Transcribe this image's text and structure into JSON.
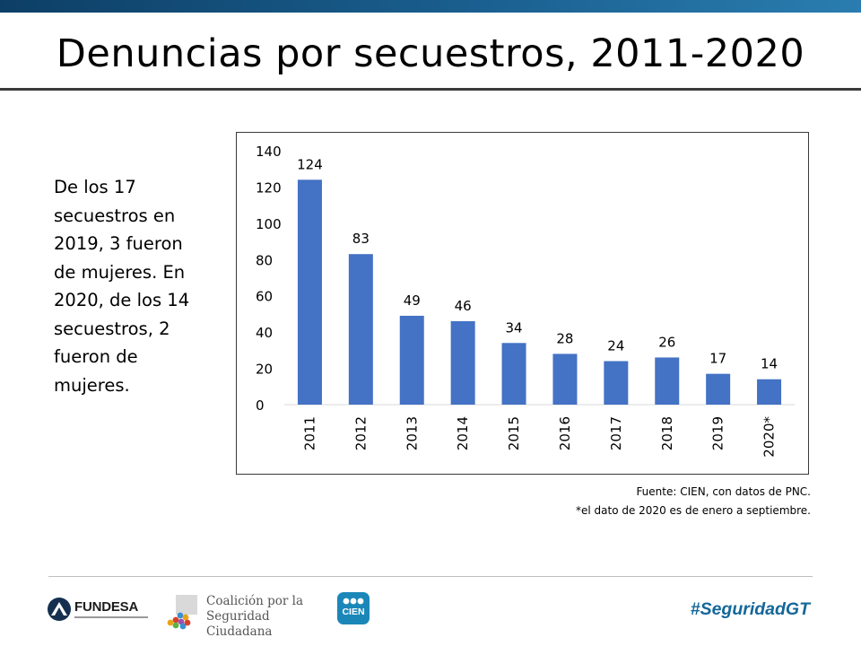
{
  "slide": {
    "title": "Denuncias por secuestros, 2011-2020",
    "note": "De los 17 secuestros en 2019, 3 fueron de mujeres. En 2020, de los 14 secuestros, 2 fueron de mujeres.",
    "note_display": "De los 17\nsecuestros en\n2019, 3 fueron\nde mujeres. En\n2020, de los 14\nsecuestros, 2\nfueron de\nmujeres.",
    "source_line1": "Fuente: CIEN, con datos de PNC.",
    "source_line2": "*el dato de 2020 es de enero a septiembre."
  },
  "chart_data": {
    "type": "bar",
    "title": "",
    "categories": [
      "2011",
      "2012",
      "2013",
      "2014",
      "2015",
      "2016",
      "2017",
      "2018",
      "2019",
      "2020*"
    ],
    "values": [
      124,
      83,
      49,
      46,
      34,
      28,
      24,
      26,
      17,
      14
    ],
    "ylim": [
      0,
      140
    ],
    "yticks": [
      0,
      20,
      40,
      60,
      80,
      100,
      120,
      140
    ],
    "xlabel": "",
    "ylabel": "",
    "grid": false,
    "legend": "none",
    "bar_color": "#4472c4",
    "label_color": "#000000"
  },
  "footer": {
    "fundesa": "FUNDESA",
    "coalicion": "Coalición por la\nSeguridad Ciudadana",
    "cien": "CIEN",
    "hashtag": "#SeguridadGT"
  },
  "colors": {
    "top_band": "#1a5f8f",
    "hashtag": "#14679a",
    "cien_badge": "#1b87b8"
  }
}
